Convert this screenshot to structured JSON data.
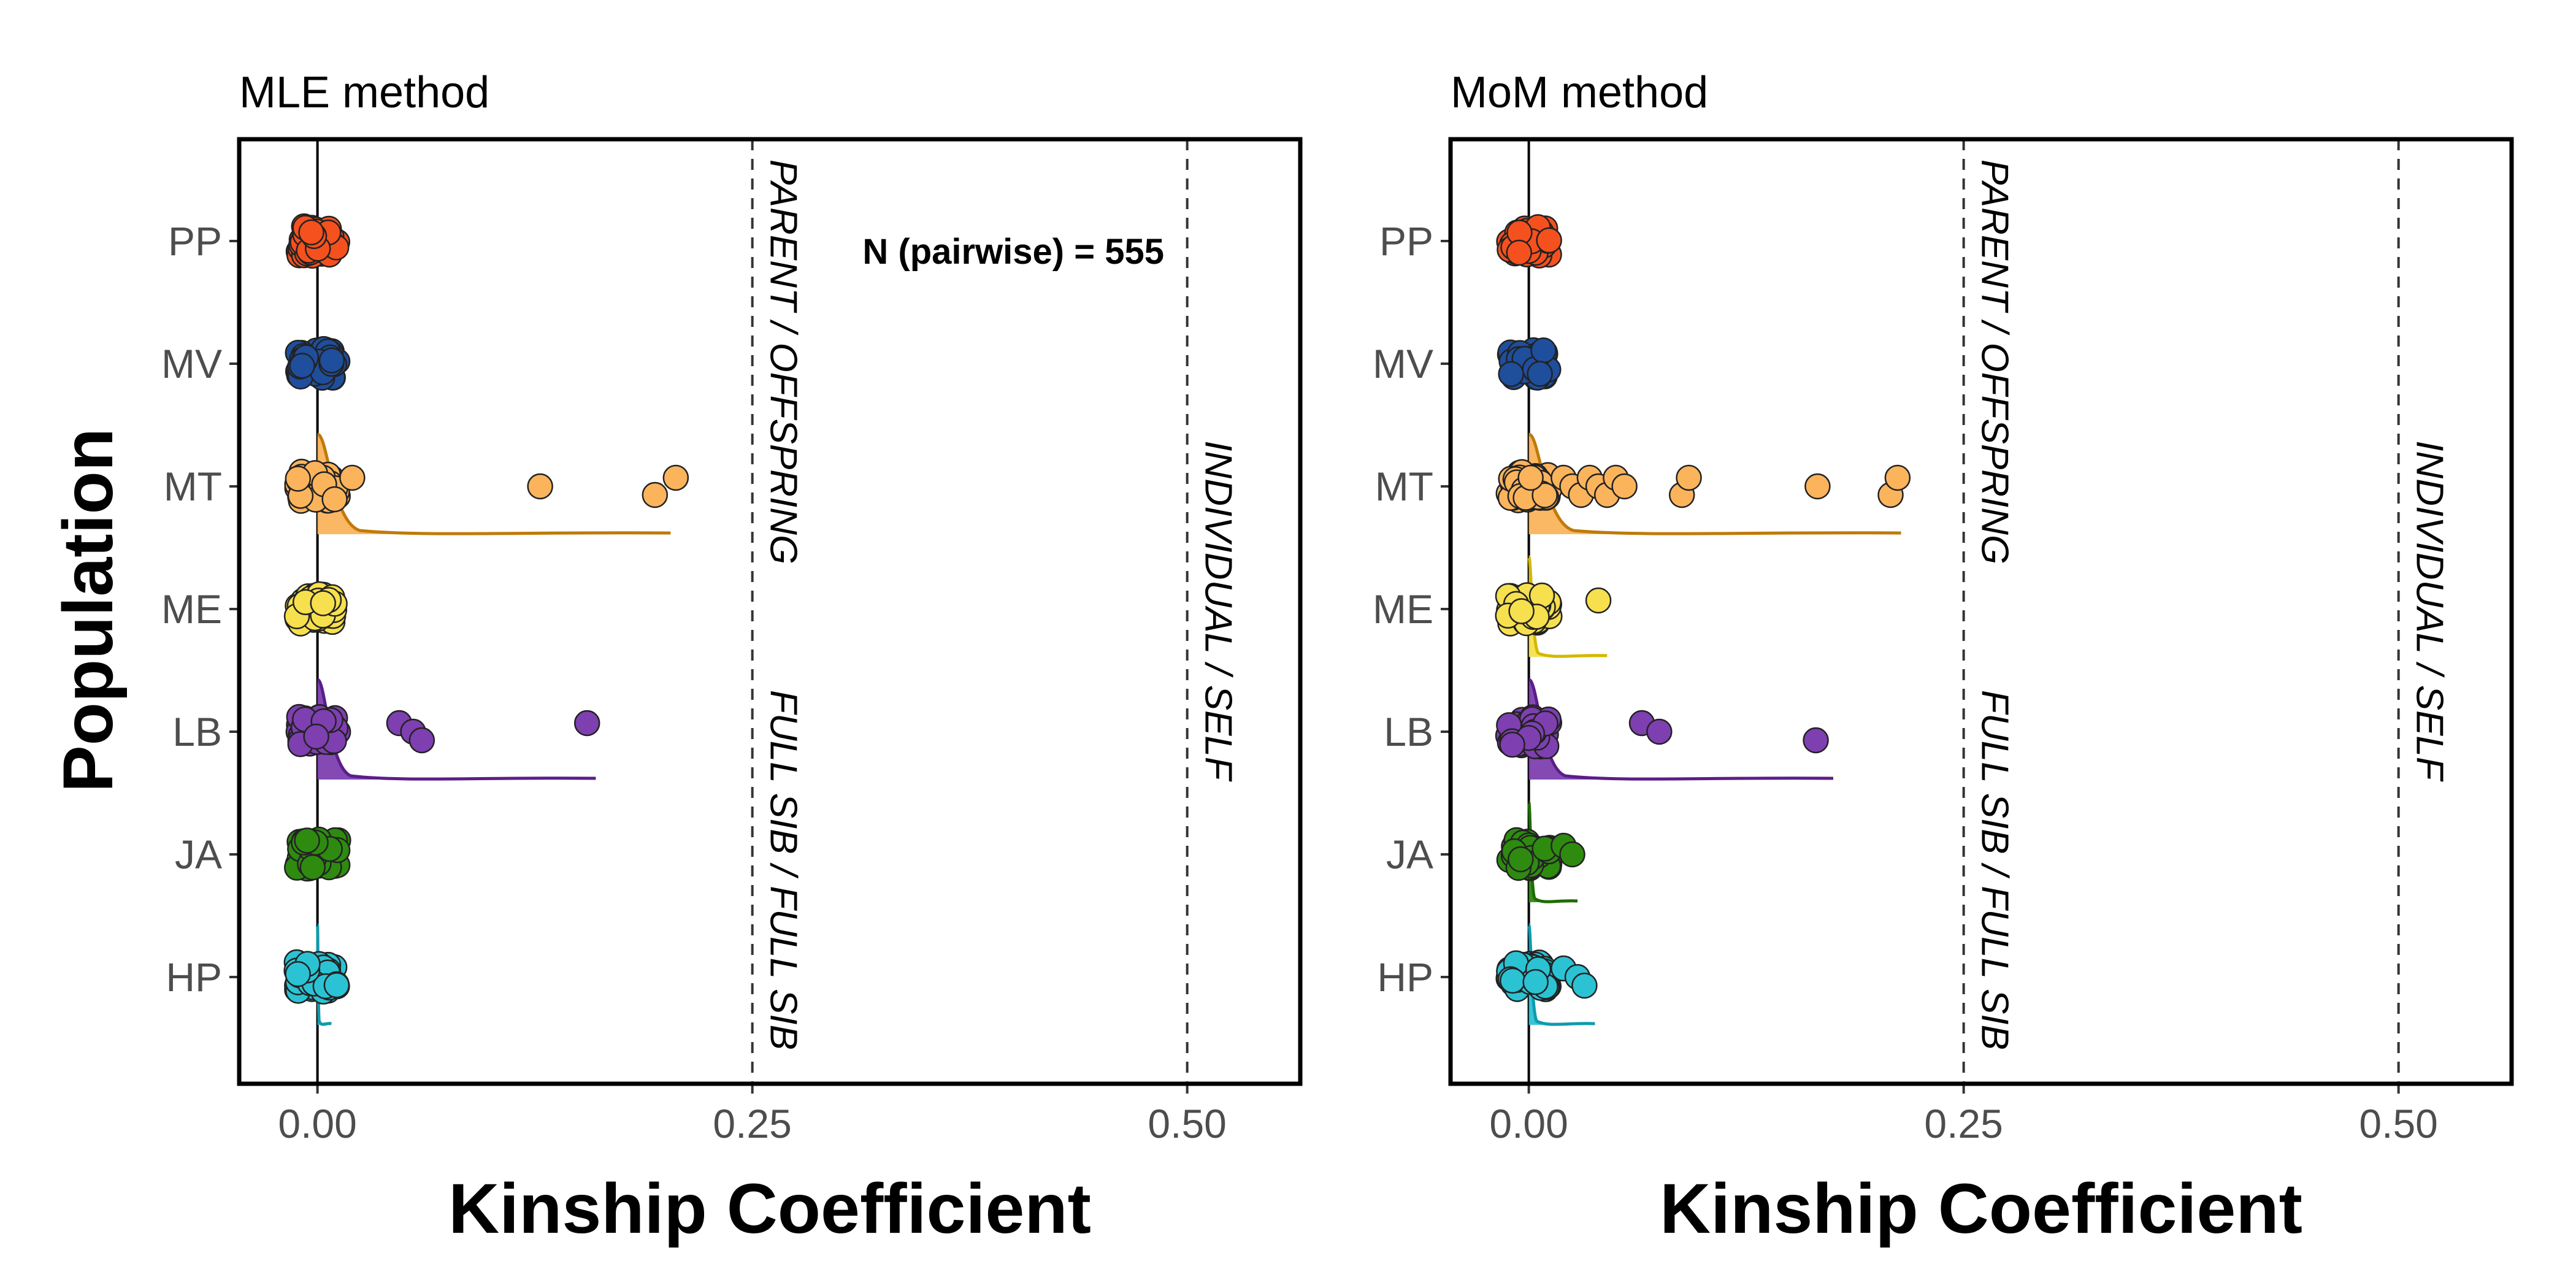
{
  "chart_data": [
    {
      "type": "scatter",
      "title": "MLE method",
      "xlabel": "Kinship Coefficient",
      "ylabel": "Population",
      "xlim": [
        -0.045,
        0.565
      ],
      "xticks": [
        {
          "value": 0.0,
          "label": "0.00"
        },
        {
          "value": 0.25,
          "label": "0.25"
        },
        {
          "value": 0.5,
          "label": "0.50"
        }
      ],
      "categories": [
        "PP",
        "MV",
        "MT",
        "ME",
        "LB",
        "JA",
        "HP"
      ],
      "grid": false,
      "annotation": "N (pairwise) = 555",
      "reference_lines": [
        {
          "x": 0.25,
          "label_top": "PARENT / OFFSPRING",
          "label_bottom": "FULL SIB / FULL SIB"
        },
        {
          "x": 0.5,
          "label_top": "INDIVIDUAL / SELF",
          "label_bottom": ""
        }
      ],
      "series": [
        {
          "category": "PP",
          "color": "#F4511E",
          "cluster_max": 0.012,
          "outliers": [],
          "density_max": 0
        },
        {
          "category": "MV",
          "color": "#1F4E9C",
          "cluster_max": 0.012,
          "outliers": [],
          "density_max": 0
        },
        {
          "category": "MT",
          "color": "#FBB45C",
          "line_color": "#C07A0A",
          "cluster_max": 0.012,
          "outliers": [
            0.02,
            0.128,
            0.194,
            0.206
          ],
          "density_max": 0.203
        },
        {
          "category": "ME",
          "color": "#F6E04E",
          "line_color": "#D4B800",
          "cluster_max": 0.01,
          "outliers": [],
          "density_max": 0
        },
        {
          "category": "LB",
          "color": "#7E3FB0",
          "line_color": "#5A1E8A",
          "cluster_max": 0.012,
          "outliers": [
            0.047,
            0.055,
            0.06,
            0.155
          ],
          "density_max": 0.16
        },
        {
          "category": "JA",
          "color": "#2E8B10",
          "line_color": "#1E6B06",
          "cluster_max": 0.012,
          "outliers": [],
          "density_max": 0
        },
        {
          "category": "HP",
          "color": "#2BC3D4",
          "line_color": "#0E9AAE",
          "cluster_max": 0.012,
          "outliers": [],
          "density_max": 0.008
        }
      ]
    },
    {
      "type": "scatter",
      "title": "MoM method",
      "xlabel": "Kinship Coefficient",
      "ylabel": "",
      "xlim": [
        -0.045,
        0.565
      ],
      "xticks": [
        {
          "value": 0.0,
          "label": "0.00"
        },
        {
          "value": 0.25,
          "label": "0.25"
        },
        {
          "value": 0.5,
          "label": "0.50"
        }
      ],
      "categories": [
        "PP",
        "MV",
        "MT",
        "ME",
        "LB",
        "JA",
        "HP"
      ],
      "grid": false,
      "annotation": "",
      "reference_lines": [
        {
          "x": 0.25,
          "label_top": "PARENT / OFFSPRING",
          "label_bottom": "FULL SIB / FULL SIB"
        },
        {
          "x": 0.5,
          "label_top": "INDIVIDUAL / SELF",
          "label_bottom": ""
        }
      ],
      "series": [
        {
          "category": "PP",
          "color": "#F4511E",
          "cluster_max": 0.012,
          "outliers": [],
          "density_max": 0
        },
        {
          "category": "MV",
          "color": "#1F4E9C",
          "cluster_max": 0.012,
          "outliers": [],
          "density_max": 0
        },
        {
          "category": "MT",
          "color": "#FBB45C",
          "line_color": "#C07A0A",
          "cluster_max": 0.012,
          "outliers": [
            0.02,
            0.025,
            0.03,
            0.035,
            0.04,
            0.045,
            0.05,
            0.055,
            0.088,
            0.092,
            0.166,
            0.208,
            0.212
          ],
          "density_max": 0.214
        },
        {
          "category": "ME",
          "color": "#F6E04E",
          "line_color": "#D4B800",
          "cluster_max": 0.012,
          "outliers": [
            0.04
          ],
          "density_max": 0.045
        },
        {
          "category": "LB",
          "color": "#7E3FB0",
          "line_color": "#5A1E8A",
          "cluster_max": 0.012,
          "outliers": [
            0.065,
            0.075,
            0.165
          ],
          "density_max": 0.175
        },
        {
          "category": "JA",
          "color": "#2E8B10",
          "line_color": "#1E6B06",
          "cluster_max": 0.012,
          "outliers": [
            0.02,
            0.025
          ],
          "density_max": 0.028
        },
        {
          "category": "HP",
          "color": "#2BC3D4",
          "line_color": "#0E9AAE",
          "cluster_max": 0.012,
          "outliers": [
            0.02,
            0.028,
            0.032
          ],
          "density_max": 0.038
        }
      ]
    }
  ]
}
